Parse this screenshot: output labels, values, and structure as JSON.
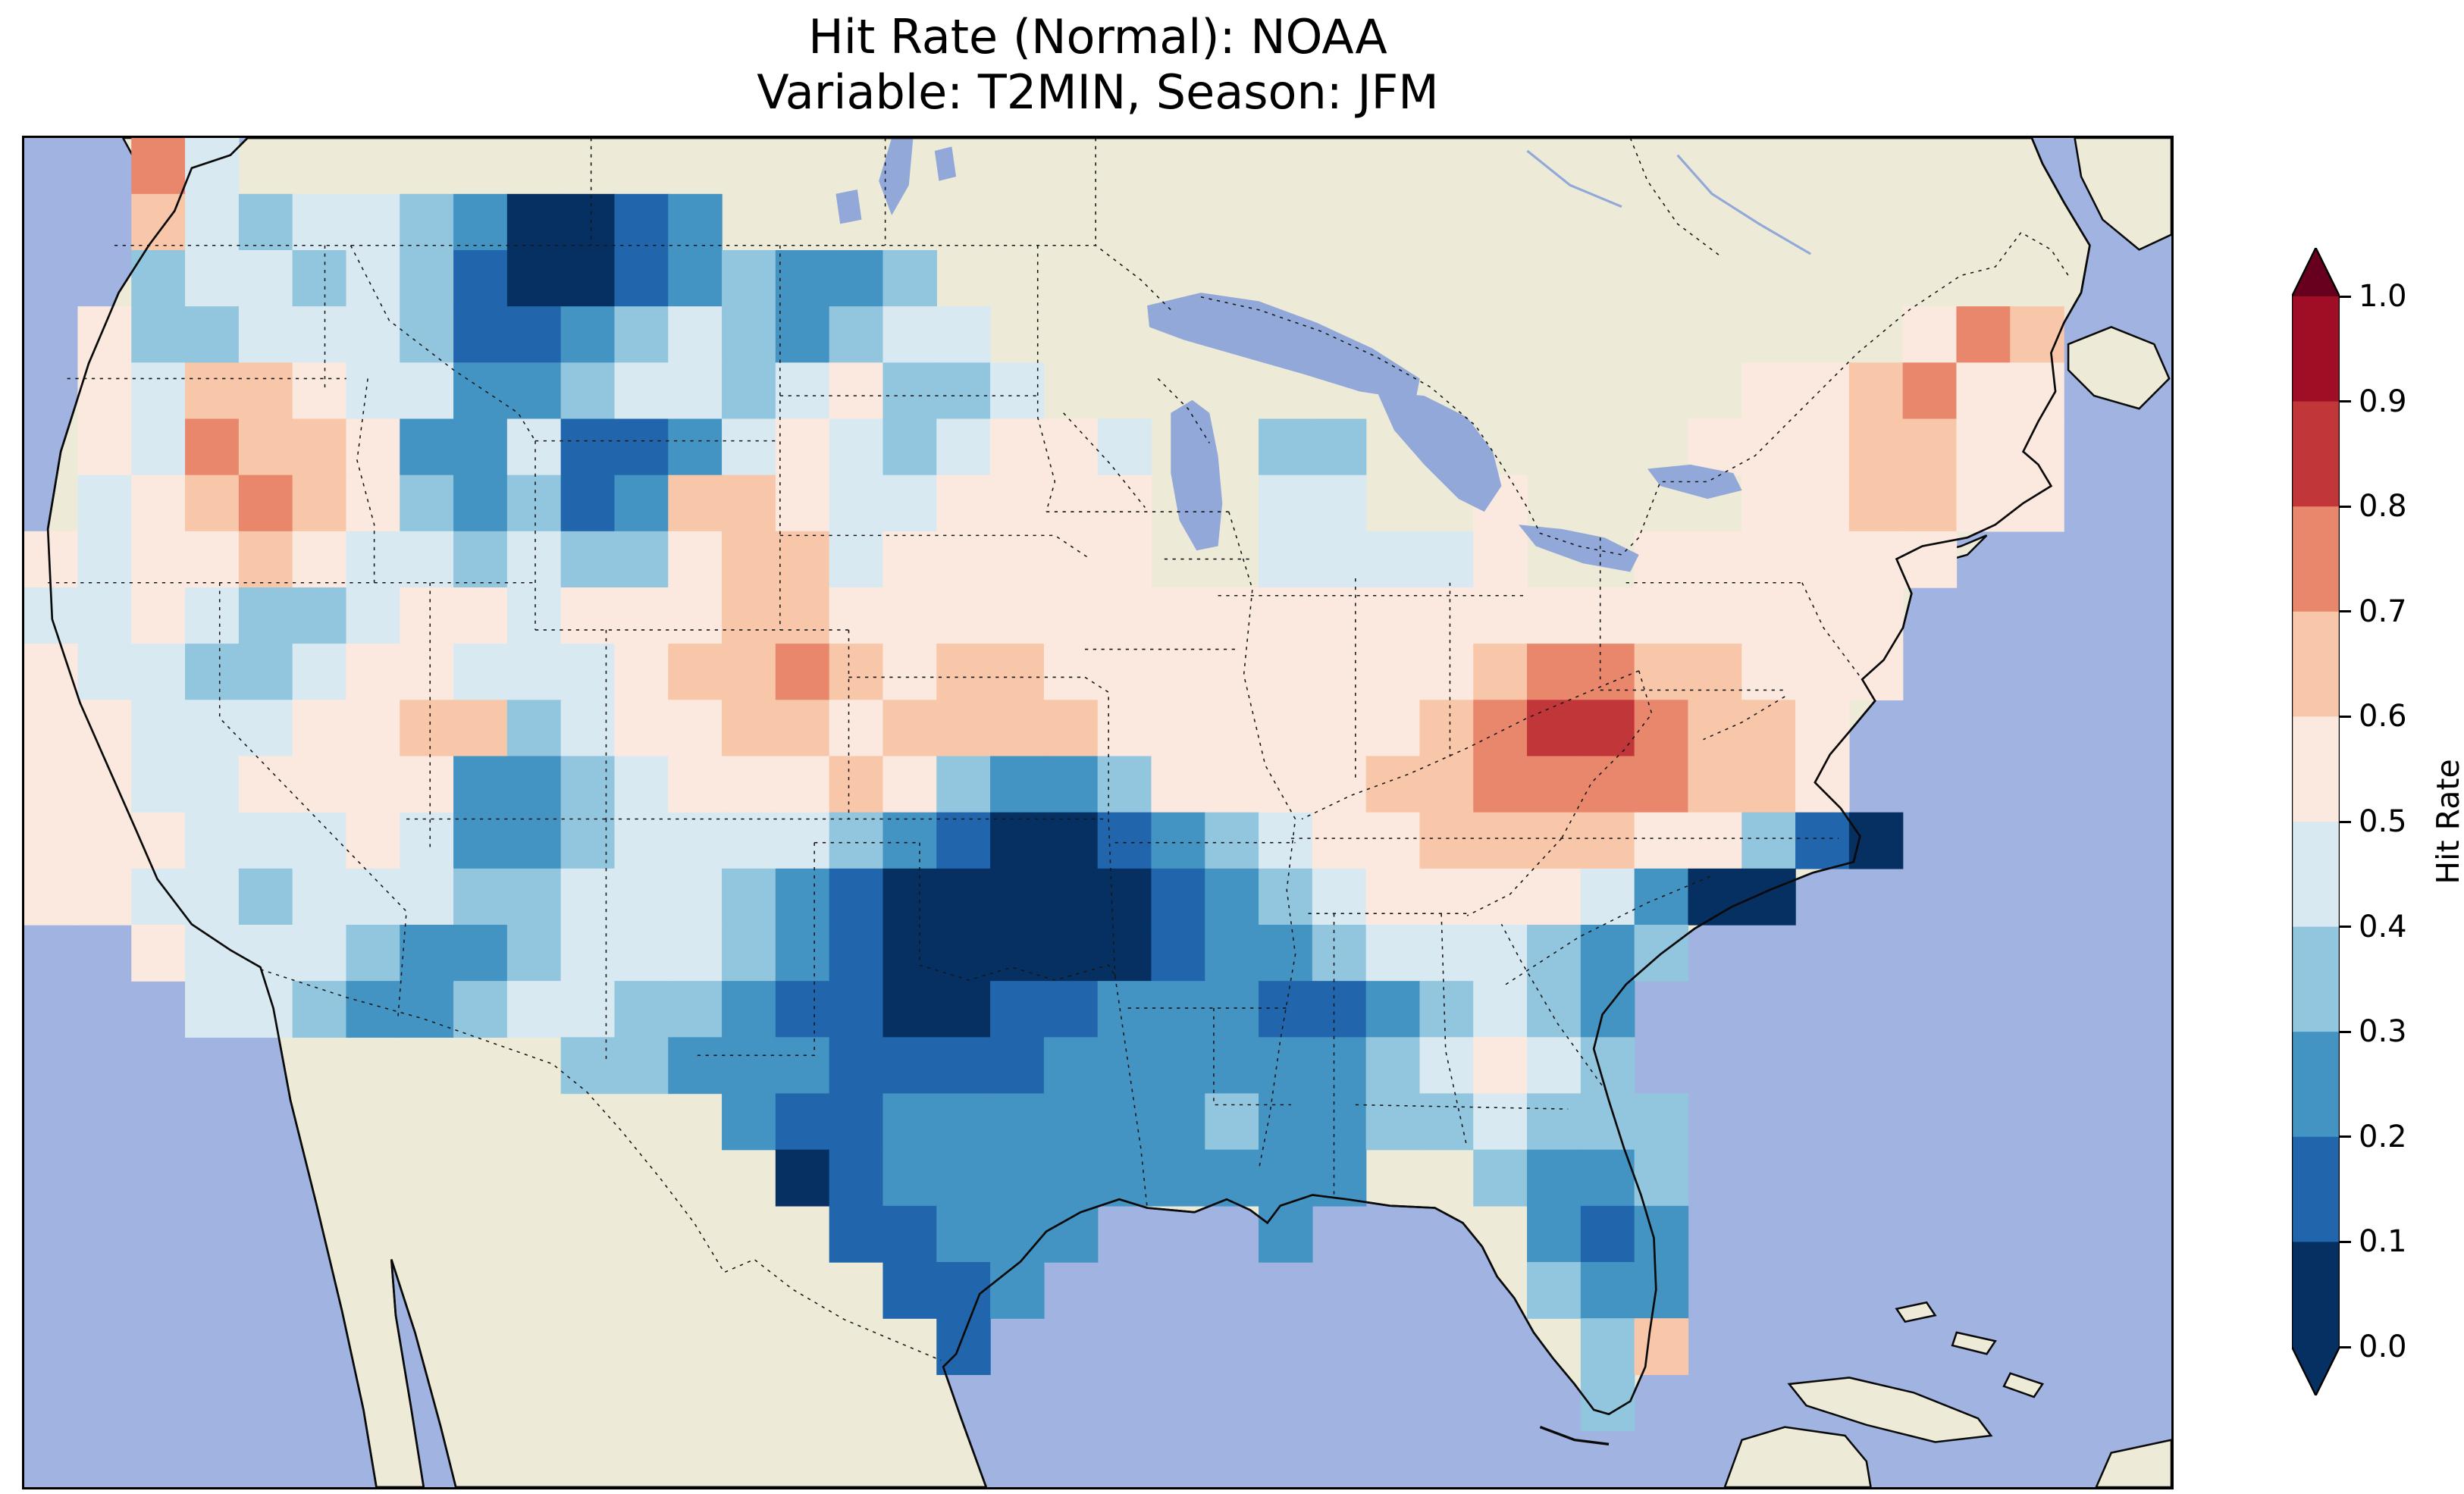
{
  "figure": {
    "title_line1": "Hit Rate (Normal): NOAA",
    "title_line2": "Variable: T2MIN, Season: JFM"
  },
  "colorbar": {
    "label": "Hit Rate",
    "ticks": [
      "1.0",
      "0.9",
      "0.8",
      "0.7",
      "0.6",
      "0.5",
      "0.4",
      "0.3",
      "0.2",
      "0.1",
      "0.0"
    ],
    "band_colors_low_to_high": [
      "#053061",
      "#2166ac",
      "#4393c3",
      "#92c5de",
      "#d9e9f1",
      "#fbe9df",
      "#f8c6a8",
      "#e8876b",
      "#c13639",
      "#a00e26"
    ],
    "under_color": "#053061",
    "over_color": "#67001f"
  },
  "chart_data": {
    "type": "heatmap",
    "subtype": "geographic hit-rate map over contiguous United States",
    "title": "Hit Rate (Normal): NOAA",
    "subtitle": "Variable: T2MIN, Season: JFM",
    "variable": "T2MIN",
    "season": "JFM",
    "source_label": "NOAA",
    "colorbar_label": "Hit Rate",
    "value_range": [
      0.0,
      1.0
    ],
    "band_edges": [
      0.0,
      0.1,
      0.2,
      0.3,
      0.4,
      0.5,
      0.6,
      0.7,
      0.8,
      0.9,
      1.0
    ],
    "colorbar_extend": "both",
    "grid_rows": 24,
    "grid_cols": 40,
    "grid_legend": "Each character is one map cell (approx. values read from the figure); digit d = hit-rate band [d*0.1, d*0.1+0.1]; '.' = no data",
    "grid": [
      "..74....................................",
      "..64344320012...........................",
      "..344343100123223.......................",
      ".53344431123432344.................576..",
      ".546654422344345334.............556755..",
      ".54766522411245434554..33......5556655..",
      ".45676532312665445555..44..5....556655..",
      "545565443433566455555..44445..555555....",
      "44543345545556655555555555555555555.....",
      "54433455444566765665555555567766555.....",
      "5544455663455665666655555567887665......",
      "5544555522345556532235555667777665......",
      "55544454223444432100123455666655310.....",
      "554434443344432100000123455554200.......",
      "..54443223444321000001223444323.........",
      "...443223443321100112221123432..........",
      "..........33222111122222234543..........",
      ".............211222222322334333.........",
      "..............01222222222..3223.........",
      "...............11222...2....212.........",
      "................112.........322.........",
      ".................1...........36.........",
      ".............................3..........",
      "........................................"
    ],
    "band_colors": [
      "#053061",
      "#2166ac",
      "#4393c3",
      "#92c5de",
      "#d9e9f1",
      "#fbe9df",
      "#f8c6a8",
      "#e8876b",
      "#c13639",
      "#a00e26"
    ],
    "map_colors": {
      "ocean": "#a1b3e0",
      "land": "#edebd7",
      "lakes": "#92a8d8",
      "coastline": "#0a0a0a",
      "background": "#ffffff"
    }
  }
}
